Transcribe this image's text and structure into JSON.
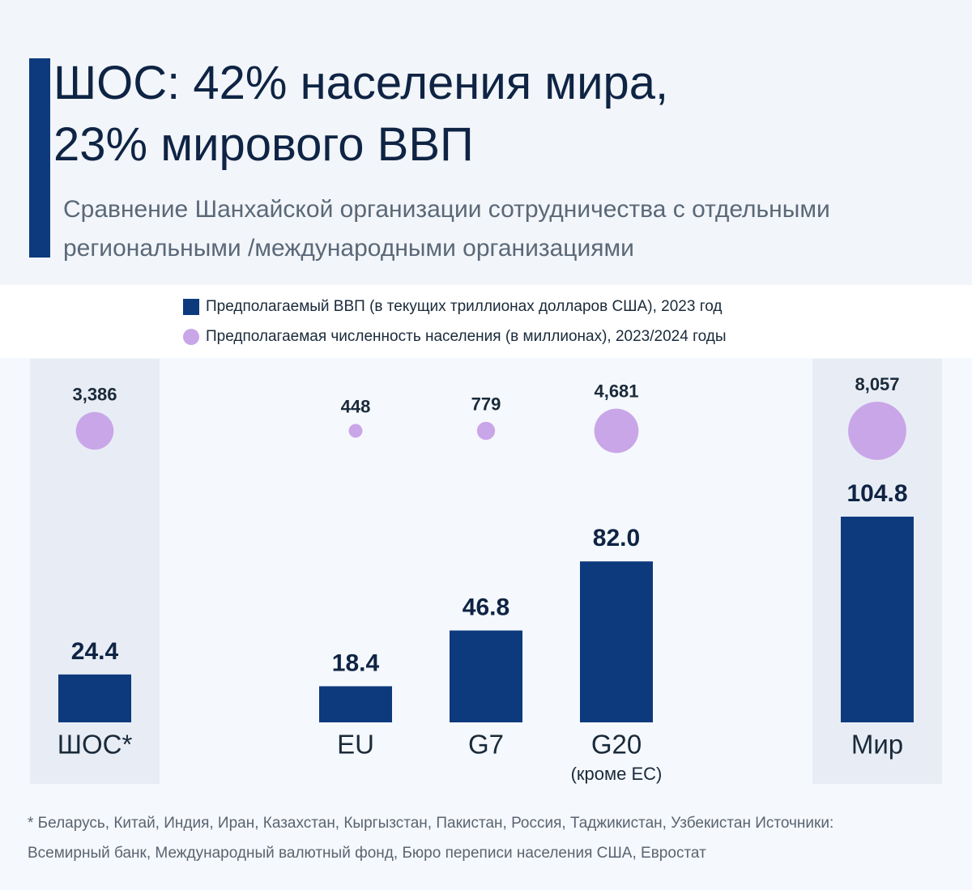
{
  "chart_data": {
    "type": "bar",
    "title": [
      "ШОС: 42% населения мира,",
      "23% мирового ВВП"
    ],
    "subtitle": [
      "Сравнение Шанхайской организации сотрудничества с отдельными",
      "региональными /международными организациями"
    ],
    "categories": [
      "ШОС*",
      "EU",
      "G7",
      "G20",
      "Мир"
    ],
    "category_notes": [
      null,
      null,
      null,
      "(кроме ЕС)",
      null
    ],
    "series": [
      {
        "name": "Предполагаемый ВВП (в текущих триллионах долларов США), 2023 год",
        "type": "bar",
        "color": "#0d3a7d",
        "values": [
          24.4,
          18.4,
          46.8,
          82.0,
          104.8
        ],
        "value_labels": [
          "24.4",
          "18.4",
          "46.8",
          "82.0",
          "104.8"
        ]
      },
      {
        "name": "Предполагаемая численность населения (в миллионах), 2023/2024 годы",
        "type": "bubble",
        "color": "#c9a6e8",
        "values": [
          3386,
          448,
          779,
          4681,
          8057
        ],
        "value_labels": [
          "3,386",
          "448",
          "779",
          "4,681",
          "8,057"
        ]
      }
    ],
    "footnote": [
      "* Беларусь, Китай, Индия, Иран, Казахстан, Кыргызстан, Пакистан, Россия, Таджикистан, Узбекистан Источники:",
      "Всемирный банк, Международный валютный фонд, Бюро переписи населения США, Евростат"
    ]
  }
}
